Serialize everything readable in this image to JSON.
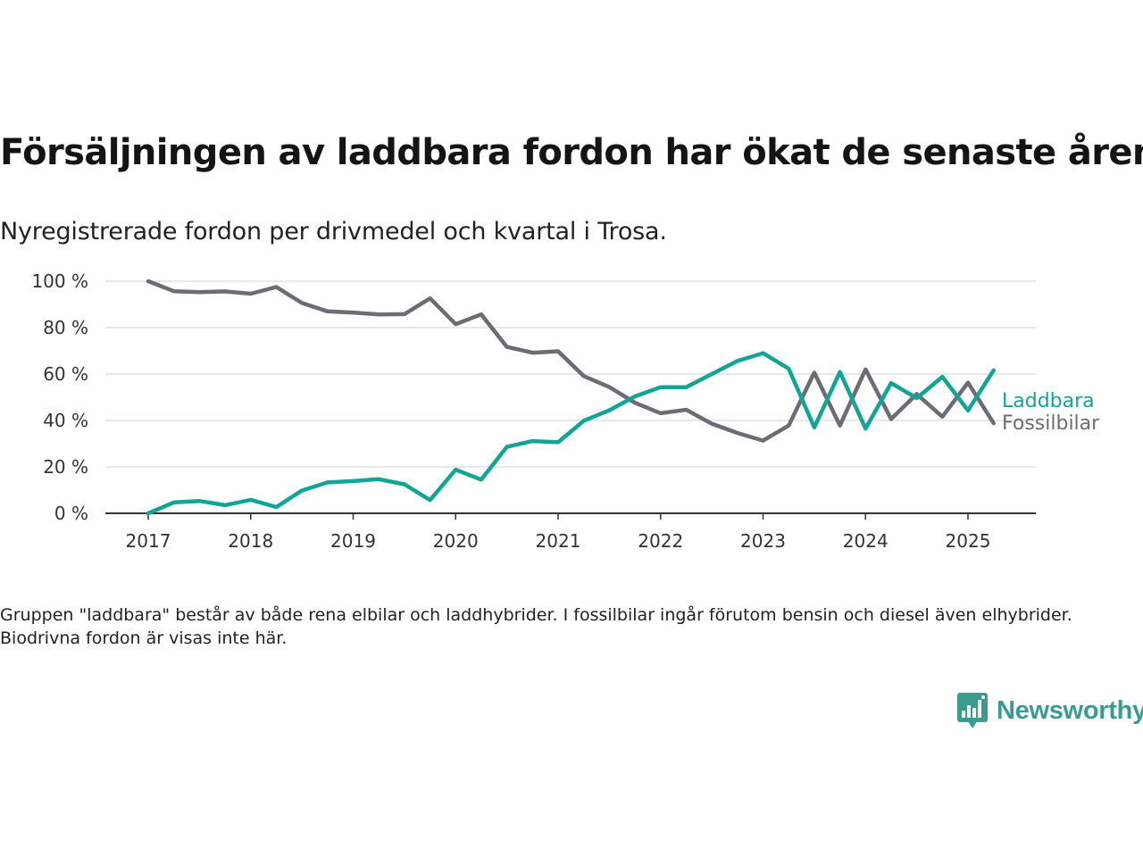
{
  "header": {
    "title": "Försäljningen av laddbara fordon har ökat de senaste åren",
    "subtitle": "Nyregistrerade fordon per drivmedel och kvartal i Trosa."
  },
  "footer": {
    "note": "Gruppen \"laddbara\" består av både rena elbilar och laddhybrider. I fossilbilar ingår förutom bensin och diesel även elhybrider. Biodrivna fordon är visas inte här.",
    "brand": "Newsworthy"
  },
  "colors": {
    "laddbara": "#12a596",
    "fossil": "#6d6b73",
    "grid": "#d9d9d9",
    "axis": "#333333"
  },
  "chart_data": {
    "type": "line",
    "x_ticks": [
      "2017",
      "2018",
      "2019",
      "2020",
      "2021",
      "2022",
      "2023",
      "2024",
      "2025"
    ],
    "y_ticks": [
      "0 %",
      "20 %",
      "40 %",
      "60 %",
      "80 %",
      "100 %"
    ],
    "ylim": [
      0,
      100
    ],
    "xlim": [
      "2016-Q3",
      "2025-Q4"
    ],
    "x": [
      "2017-Q1",
      "2017-Q2",
      "2017-Q3",
      "2017-Q4",
      "2018-Q1",
      "2018-Q2",
      "2018-Q3",
      "2018-Q4",
      "2019-Q1",
      "2019-Q2",
      "2019-Q3",
      "2019-Q4",
      "2020-Q1",
      "2020-Q2",
      "2020-Q3",
      "2020-Q4",
      "2021-Q1",
      "2021-Q2",
      "2021-Q3",
      "2021-Q4",
      "2022-Q1",
      "2022-Q2",
      "2022-Q3",
      "2022-Q4",
      "2023-Q1",
      "2023-Q2",
      "2023-Q3",
      "2023-Q4",
      "2024-Q1",
      "2024-Q2",
      "2024-Q3",
      "2024-Q4",
      "2025-Q1",
      "2025-Q2"
    ],
    "grid": true,
    "series": [
      {
        "name": "Laddbara",
        "color": "#12a596",
        "values": [
          0,
          4.7,
          5.3,
          3.5,
          5.8,
          2.7,
          9.8,
          13.3,
          13.9,
          14.7,
          12.5,
          5.7,
          18.8,
          14.5,
          28.6,
          31.1,
          30.6,
          39.9,
          44.4,
          50.4,
          54.3,
          54.3,
          60,
          65.6,
          69,
          62.3,
          37,
          60.9,
          36.5,
          56.1,
          49.6,
          58.8,
          44.3,
          61.6
        ]
      },
      {
        "name": "Fossilbilar",
        "color": "#6d6b73",
        "values": [
          100,
          95.7,
          95.3,
          95.6,
          94.6,
          97.5,
          90.6,
          87,
          86.5,
          85.7,
          85.8,
          92.6,
          81.5,
          85.7,
          71.7,
          69.2,
          69.8,
          59.1,
          54.4,
          47.6,
          43.1,
          44.6,
          38.6,
          34.6,
          31.3,
          37.8,
          60.6,
          37.8,
          62,
          40.6,
          51.4,
          41.6,
          56.3,
          38.8
        ]
      }
    ]
  }
}
